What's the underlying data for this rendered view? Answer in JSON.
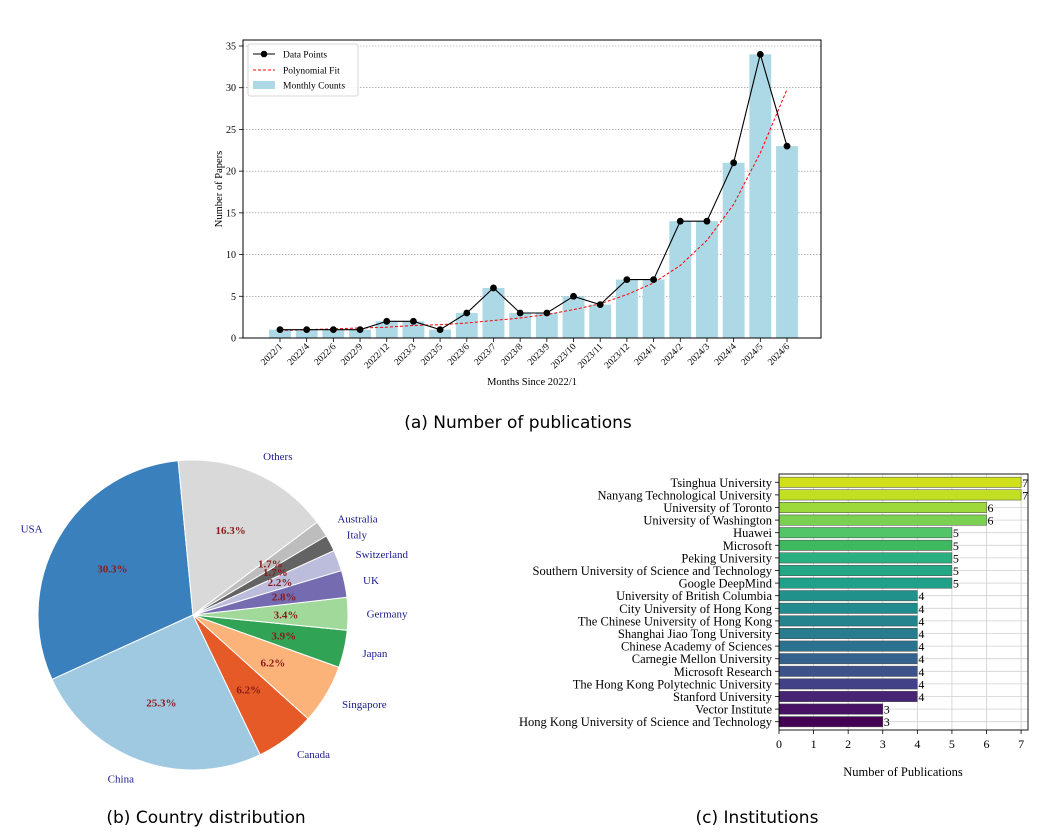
{
  "chart_data": [
    {
      "type": "bar",
      "caption": "(a) Number of publications",
      "xlabel": "Months Since 2022/1",
      "ylabel": "Number of Papers",
      "ylim": [
        0,
        35
      ],
      "yticks": [
        0,
        5,
        10,
        15,
        20,
        25,
        30,
        35
      ],
      "grid": "horizontal dotted",
      "legend_placement": "top-left",
      "categories": [
        "2022/1",
        "2022/4",
        "2022/6",
        "2022/9",
        "2022/12",
        "2023/3",
        "2023/5",
        "2023/6",
        "2023/7",
        "2023/8",
        "2023/9",
        "2023/10",
        "2023/11",
        "2023/12",
        "2024/1",
        "2024/2",
        "2024/3",
        "2024/4",
        "2024/5",
        "2024/6"
      ],
      "series": [
        {
          "name": "Monthly Counts",
          "kind": "bar",
          "color": "#add8e6",
          "values": [
            1,
            1,
            1,
            1,
            2,
            2,
            1,
            3,
            6,
            3,
            3,
            5,
            4,
            7,
            7,
            14,
            14,
            21,
            34,
            23
          ]
        },
        {
          "name": "Data Points",
          "kind": "line-markers",
          "color": "#000000",
          "values": [
            1,
            1,
            1,
            1,
            2,
            2,
            1,
            3,
            6,
            3,
            3,
            5,
            4,
            7,
            7,
            14,
            14,
            21,
            34,
            23
          ]
        },
        {
          "name": "Polynomial Fit",
          "kind": "dashed-curve",
          "color": "#ff0000",
          "values": [
            0.9,
            1.0,
            1.1,
            1.2,
            1.3,
            1.5,
            1.6,
            1.8,
            2.1,
            2.4,
            2.8,
            3.4,
            4.1,
            5.2,
            6.6,
            8.7,
            11.7,
            16.0,
            22.2,
            29.8
          ]
        }
      ]
    },
    {
      "type": "pie",
      "caption": "(b) Country distribution",
      "slices": [
        {
          "label": "USA",
          "value": 30.3,
          "pct_label": "30.3%",
          "color": "#3a80bd"
        },
        {
          "label": "China",
          "value": 25.3,
          "pct_label": "25.3%",
          "color": "#9fc9e1"
        },
        {
          "label": "Canada",
          "value": 6.2,
          "pct_label": "6.2%",
          "color": "#e55a26"
        },
        {
          "label": "Singapore",
          "value": 6.2,
          "pct_label": "6.2%",
          "color": "#fcb37a"
        },
        {
          "label": "Japan",
          "value": 3.9,
          "pct_label": "3.9%",
          "color": "#31a354"
        },
        {
          "label": "Germany",
          "value": 3.4,
          "pct_label": "3.4%",
          "color": "#a1d99b"
        },
        {
          "label": "UK",
          "value": 2.8,
          "pct_label": "2.8%",
          "color": "#756bb1"
        },
        {
          "label": "Switzerland",
          "value": 2.2,
          "pct_label": "2.2%",
          "color": "#bcbddc"
        },
        {
          "label": "Italy",
          "value": 1.7,
          "pct_label": "1.7%",
          "color": "#636363"
        },
        {
          "label": "Australia",
          "value": 1.7,
          "pct_label": "1.7%",
          "color": "#bdbdbd"
        },
        {
          "label": "Others",
          "value": 16.3,
          "pct_label": "16.3%",
          "color": "#d9d9d9"
        }
      ]
    },
    {
      "type": "bar",
      "orientation": "horizontal",
      "caption": "(c) Institutions",
      "xlabel": "Number of Publications",
      "xlim": [
        0,
        7.2
      ],
      "xticks": [
        0,
        1,
        2,
        3,
        4,
        5,
        6,
        7
      ],
      "grid": "both",
      "categories": [
        "Tsinghua University",
        "Nanyang Technological University",
        "University of Toronto",
        "University of Washington",
        "Huawei",
        "Microsoft",
        "Peking University",
        "Southern University of Science and Technology",
        "Google DeepMind",
        "University of British Columbia",
        "City University of Hong Kong",
        "The Chinese University of Hong Kong",
        "Shanghai Jiao Tong University",
        "Chinese Academy of Sciences",
        "Carnegie Mellon University",
        "Microsoft Research",
        "The Hong Kong Polytechnic University",
        "Stanford University",
        "Vector Institute",
        "Hong Kong University of Science and Technology"
      ],
      "values": [
        7,
        7,
        6,
        6,
        5,
        5,
        5,
        5,
        5,
        4,
        4,
        4,
        4,
        4,
        4,
        4,
        4,
        4,
        3,
        3
      ],
      "colors": [
        "#d0e11c",
        "#c2df23",
        "#9dd93b",
        "#7ad151",
        "#52c569",
        "#3eb95f",
        "#2ab07f",
        "#22a884",
        "#1fa088",
        "#21918c",
        "#228b8d",
        "#25838e",
        "#287c8e",
        "#2c728e",
        "#33638d",
        "#3b528b",
        "#424086",
        "#482475",
        "#471164",
        "#440154"
      ]
    }
  ]
}
